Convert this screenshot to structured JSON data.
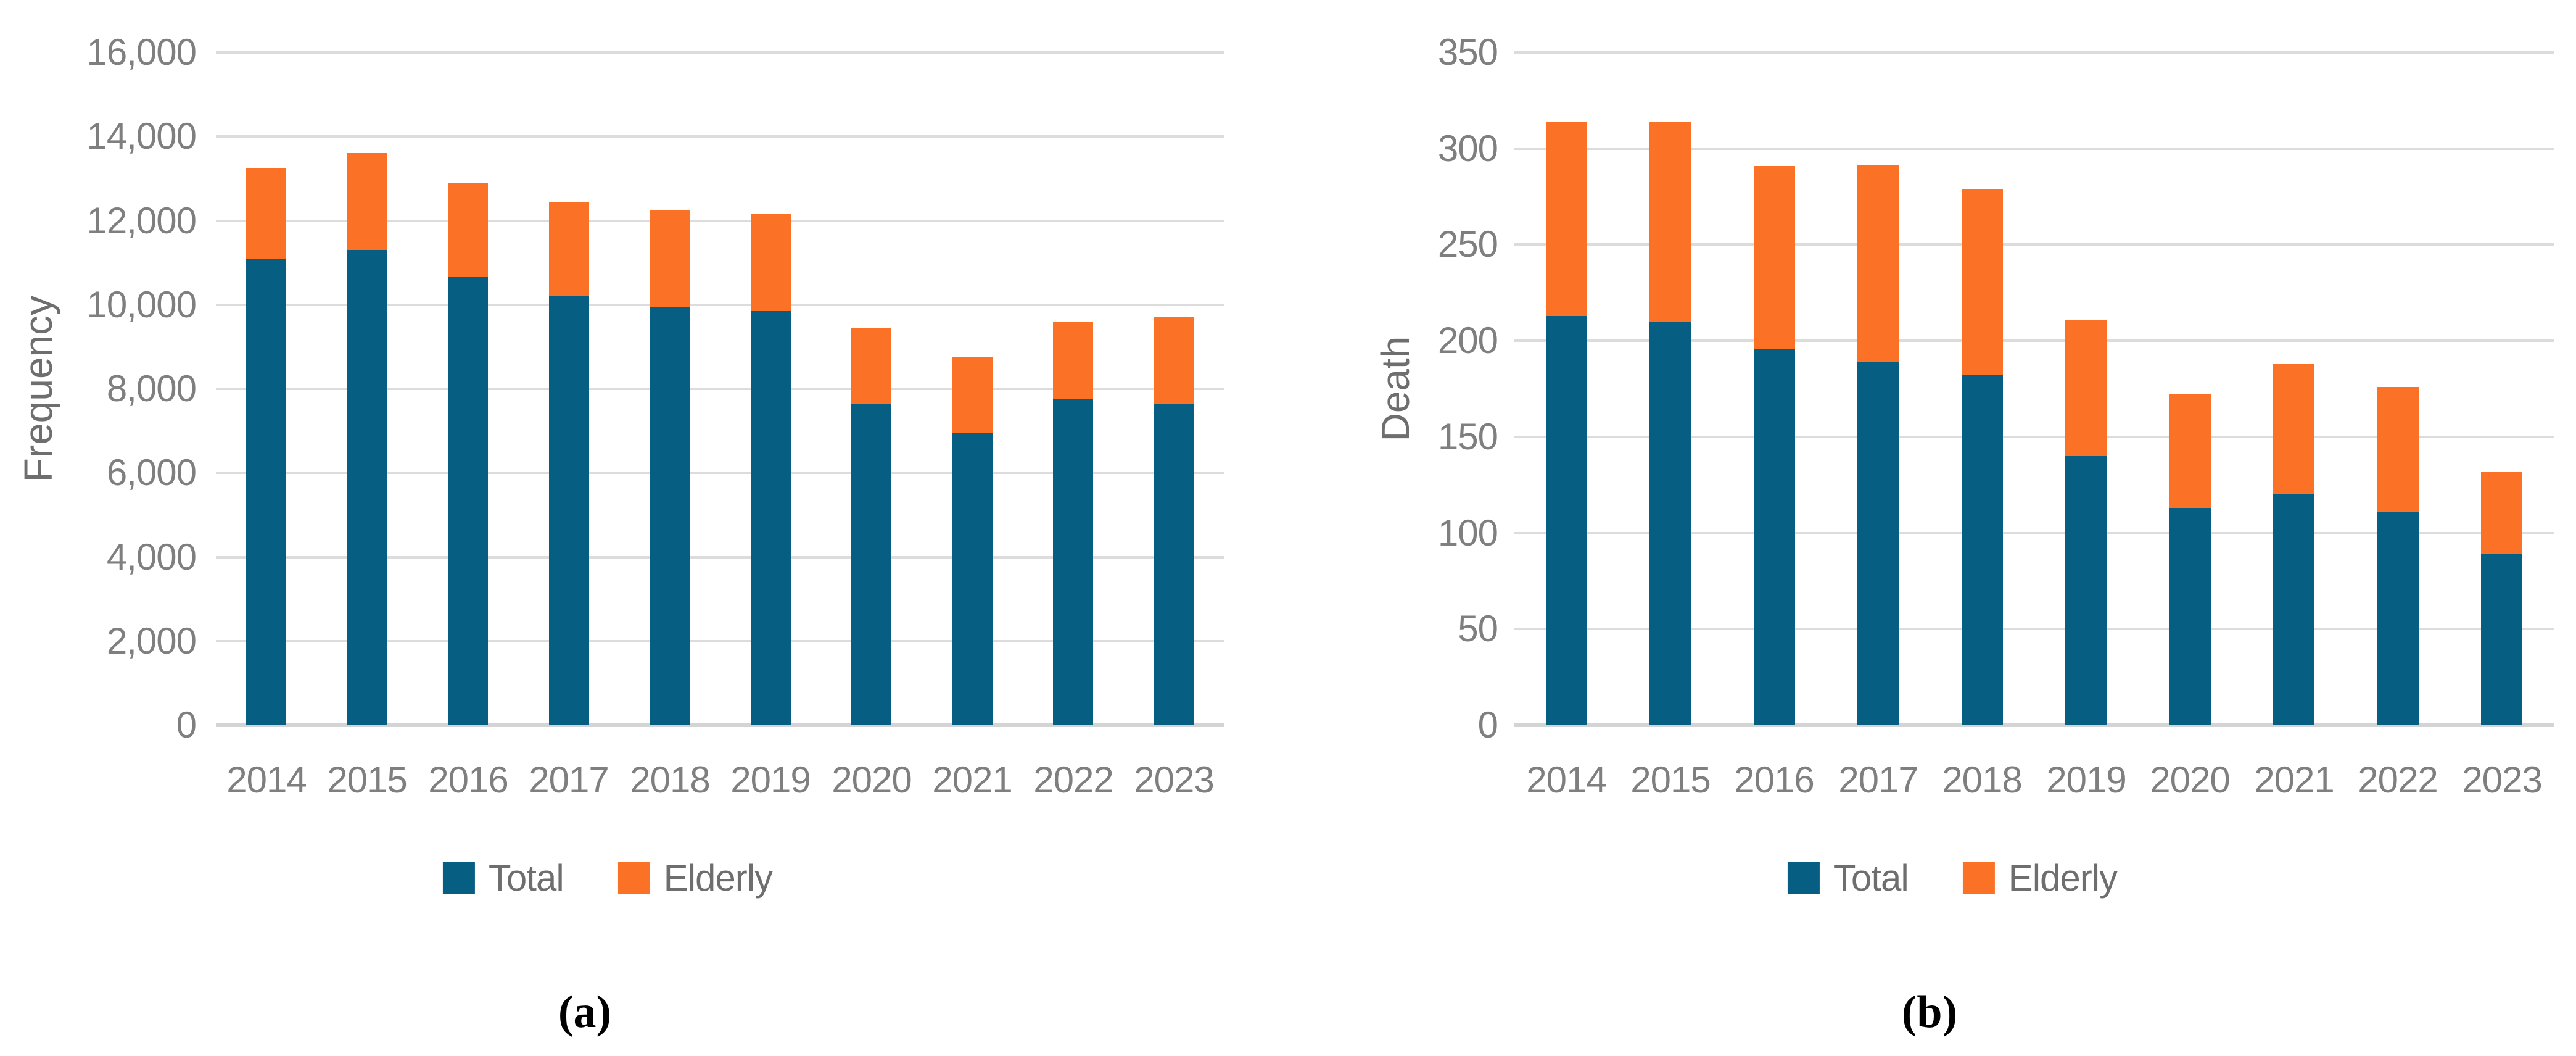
{
  "figure": {
    "captions": {
      "a": "(a)",
      "b": "(b)"
    }
  },
  "colors": {
    "total": "#065E82",
    "elderly": "#FB7226",
    "gridline": "#DCDCDC",
    "axis_line": "#D4D4D4",
    "tick_text": "#7F7F7F",
    "axis_title_text": "#6E6E6E",
    "legend_text": "#6E6E6E",
    "caption_text": "#000000"
  },
  "chart_data": [
    {
      "id": "a",
      "type": "bar",
      "stacked": true,
      "title": "",
      "xlabel": "",
      "ylabel": "Frequency",
      "categories": [
        "2014",
        "2015",
        "2016",
        "2017",
        "2018",
        "2019",
        "2020",
        "2021",
        "2022",
        "2023"
      ],
      "series": [
        {
          "name": "Total",
          "color_key": "total",
          "values": [
            11100,
            11300,
            10650,
            10200,
            9950,
            9850,
            7650,
            6950,
            7750,
            7650
          ]
        },
        {
          "name": "Elderly",
          "color_key": "elderly",
          "values": [
            2150,
            2300,
            2250,
            2250,
            2300,
            2300,
            1800,
            1800,
            1850,
            2050
          ]
        }
      ],
      "ylim": [
        0,
        16000
      ],
      "ytick_step": 2000,
      "ytick_labels": [
        "0",
        "2,000",
        "4,000",
        "6,000",
        "8,000",
        "10,000",
        "12,000",
        "14,000",
        "16,000"
      ],
      "grid": true,
      "legend": [
        "Total",
        "Elderly"
      ],
      "legend_position": "bottom",
      "caption": "(a)"
    },
    {
      "id": "b",
      "type": "bar",
      "stacked": true,
      "title": "",
      "xlabel": "",
      "ylabel": "Death",
      "categories": [
        "2014",
        "2015",
        "2016",
        "2017",
        "2018",
        "2019",
        "2020",
        "2021",
        "2022",
        "2023"
      ],
      "series": [
        {
          "name": "Total",
          "color_key": "total",
          "values": [
            213,
            210,
            196,
            189,
            182,
            140,
            113,
            120,
            111,
            89
          ]
        },
        {
          "name": "Elderly",
          "color_key": "elderly",
          "values": [
            101,
            104,
            95,
            102,
            97,
            71,
            59,
            68,
            65,
            43
          ]
        }
      ],
      "ylim": [
        0,
        350
      ],
      "ytick_step": 50,
      "ytick_labels": [
        "0",
        "50",
        "100",
        "150",
        "200",
        "250",
        "300",
        "350"
      ],
      "grid": true,
      "legend": [
        "Total",
        "Elderly"
      ],
      "legend_position": "bottom",
      "caption": "(b)"
    }
  ]
}
